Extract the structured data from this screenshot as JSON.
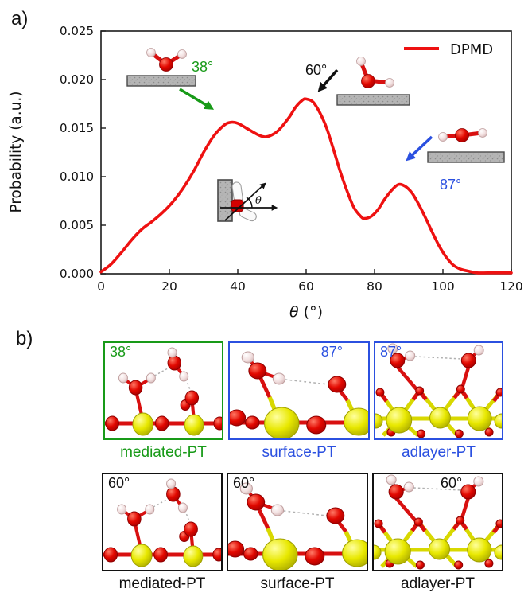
{
  "figure": {
    "panel_a_label": "a)",
    "panel_b_label": "b)"
  },
  "chart_data": {
    "type": "line",
    "title": "",
    "xlabel": "θ (°)",
    "xlabel_symbol": "θ",
    "xlabel_rest": " (°)",
    "ylabel": "Probability (a.u.)",
    "xlim": [
      0,
      120
    ],
    "ylim": [
      0,
      0.025
    ],
    "xticks": [
      0,
      20,
      40,
      60,
      80,
      100,
      120
    ],
    "yticks": [
      0,
      0.005,
      0.01,
      0.015,
      0.02,
      0.025
    ],
    "ytick_labels": [
      "0.000",
      "0.005",
      "0.010",
      "0.015",
      "0.020",
      "0.025"
    ],
    "grid": false,
    "legend": {
      "position": "upper right",
      "entries": [
        "DPMD"
      ]
    },
    "series": [
      {
        "name": "DPMD",
        "color": "#ee1111",
        "x": [
          0,
          3,
          6,
          9,
          12,
          15,
          18,
          21,
          24,
          27,
          30,
          33,
          36,
          38,
          40,
          43,
          46,
          48,
          50,
          52,
          55,
          57,
          59,
          60,
          62,
          64,
          66,
          68,
          70,
          72,
          74,
          76,
          77,
          79,
          81,
          83,
          85,
          87,
          89,
          91,
          93,
          95,
          97,
          99,
          101,
          103,
          105,
          107,
          110,
          113,
          116,
          120
        ],
        "y": [
          0.0002,
          0.001,
          0.0022,
          0.0035,
          0.0046,
          0.0054,
          0.0063,
          0.0074,
          0.0088,
          0.0105,
          0.0125,
          0.0142,
          0.0153,
          0.0156,
          0.0155,
          0.0149,
          0.0143,
          0.0141,
          0.0143,
          0.0148,
          0.0161,
          0.0172,
          0.0179,
          0.018,
          0.0177,
          0.0166,
          0.015,
          0.0128,
          0.0105,
          0.0085,
          0.0068,
          0.0059,
          0.0057,
          0.0059,
          0.0066,
          0.0077,
          0.0086,
          0.0092,
          0.009,
          0.0083,
          0.0071,
          0.0057,
          0.0042,
          0.0028,
          0.0017,
          0.0009,
          0.0005,
          0.0003,
          0.0001,
          0.0001,
          0.0001,
          0.0001
        ]
      }
    ],
    "peak_annotations": [
      {
        "angle_deg": 38,
        "label": "38°",
        "color": "#189a18",
        "peak_probability": 0.0156
      },
      {
        "angle_deg": 60,
        "label": "60°",
        "color": "#111111",
        "peak_probability": 0.018
      },
      {
        "angle_deg": 87,
        "label": "87°",
        "color": "#2b50e0",
        "peak_probability": 0.0092
      }
    ],
    "inset": {
      "theta_label": "θ"
    }
  },
  "panel_b": {
    "cells": [
      {
        "angle": "38°",
        "caption": "mediated-PT",
        "accent": "#189a18"
      },
      {
        "angle": "87°",
        "caption": "surface-PT",
        "accent": "#2b50e0"
      },
      {
        "angle": "87°",
        "caption": "adlayer-PT",
        "accent": "#2b50e0"
      },
      {
        "angle": "60°",
        "caption": "mediated-PT",
        "accent": "#111111"
      },
      {
        "angle": "60°",
        "caption": "surface-PT",
        "accent": "#111111"
      },
      {
        "angle": "60°",
        "caption": "adlayer-PT",
        "accent": "#111111"
      }
    ]
  }
}
